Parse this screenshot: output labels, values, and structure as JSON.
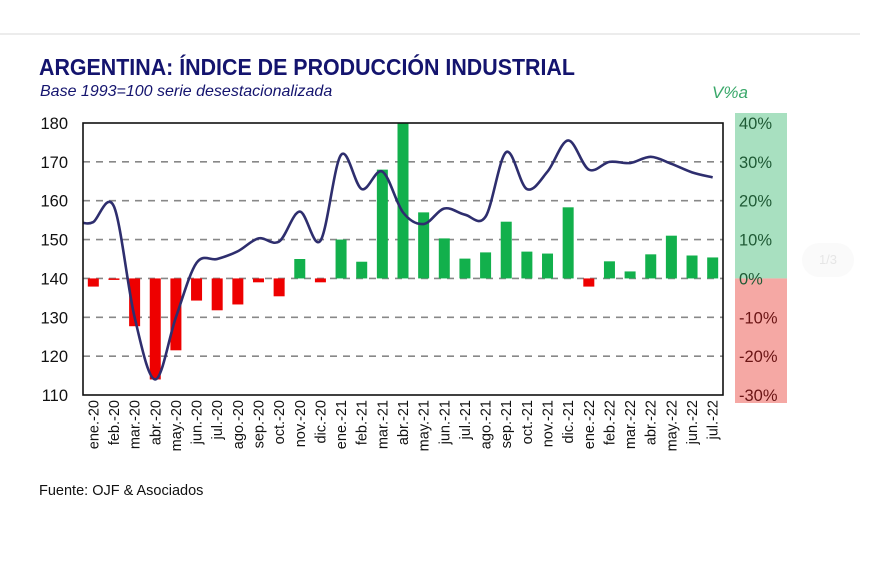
{
  "title": "ARGENTINA: ÍNDICE DE PRODUCCIÓN INDUSTRIAL",
  "subtitle": "Base 1993=100 serie desestacionalizada",
  "right_axis_title": "V%a",
  "source": "Fuente: OJF & Asociados",
  "pager": "1/3",
  "colors": {
    "title": "#14146e",
    "line": "#2e2e6e",
    "positive_bar": "#12b04c",
    "negative_bar": "#ee0000",
    "positive_band": "#a8e0c0",
    "negative_band": "#f5a8a4",
    "grid": "#888888"
  },
  "chart_data": {
    "type": "bar+line",
    "title": "ARGENTINA: ÍNDICE DE PRODUCCIÓN INDUSTRIAL",
    "subtitle": "Base 1993=100 serie desestacionalizada",
    "categories": [
      "ene.-20",
      "feb.-20",
      "mar.-20",
      "abr.-20",
      "may.-20",
      "jun.-20",
      "jul.-20",
      "ago.-20",
      "sep.-20",
      "oct.-20",
      "nov.-20",
      "dic.-20",
      "ene.-21",
      "feb.-21",
      "mar.-21",
      "abr.-21",
      "may.-21",
      "jun.-21",
      "jul.-21",
      "ago.-21",
      "sep.-21",
      "oct.-21",
      "nov.-21",
      "dic.-21",
      "ene.-22",
      "feb.-22",
      "mar.-22",
      "abr.-22",
      "may.-22",
      "jun.-22",
      "jul.-22"
    ],
    "series": [
      {
        "name": "Índice (base 1993=100)",
        "type": "line",
        "axis": "left",
        "values": [
          154.5,
          158.5,
          130.0,
          114.0,
          130.0,
          144.0,
          145.0,
          147.0,
          150.3,
          149.5,
          157.2,
          149.7,
          171.8,
          163.0,
          167.5,
          157.0,
          154.0,
          158.0,
          156.4,
          155.9,
          172.5,
          163.0,
          167.5,
          175.5,
          168.0,
          170.0,
          169.7,
          171.3,
          169.5,
          167.3,
          166.0
        ]
      },
      {
        "name": "V%a",
        "type": "bar",
        "axis": "right",
        "values": [
          -2.1,
          -0.3,
          -12.3,
          -26.0,
          -18.5,
          -5.7,
          -8.2,
          -6.7,
          -1.0,
          -4.6,
          5.0,
          -1.0,
          10.0,
          4.3,
          28.0,
          40.0,
          17.0,
          10.3,
          5.1,
          6.7,
          14.6,
          6.9,
          6.4,
          18.3,
          -2.1,
          4.4,
          1.8,
          6.2,
          11.0,
          5.9,
          5.4
        ]
      }
    ],
    "left_axis": {
      "ticks": [
        "180",
        "170",
        "160",
        "150",
        "140",
        "130",
        "120",
        "110"
      ],
      "range": [
        110,
        180
      ]
    },
    "right_axis": {
      "title": "V%a",
      "ticks": [
        "40%",
        "30%",
        "20%",
        "10%",
        "0%",
        "-10%",
        "-20%",
        "-30%"
      ],
      "range": [
        -30,
        40
      ]
    },
    "grid": true,
    "legend": "none"
  }
}
